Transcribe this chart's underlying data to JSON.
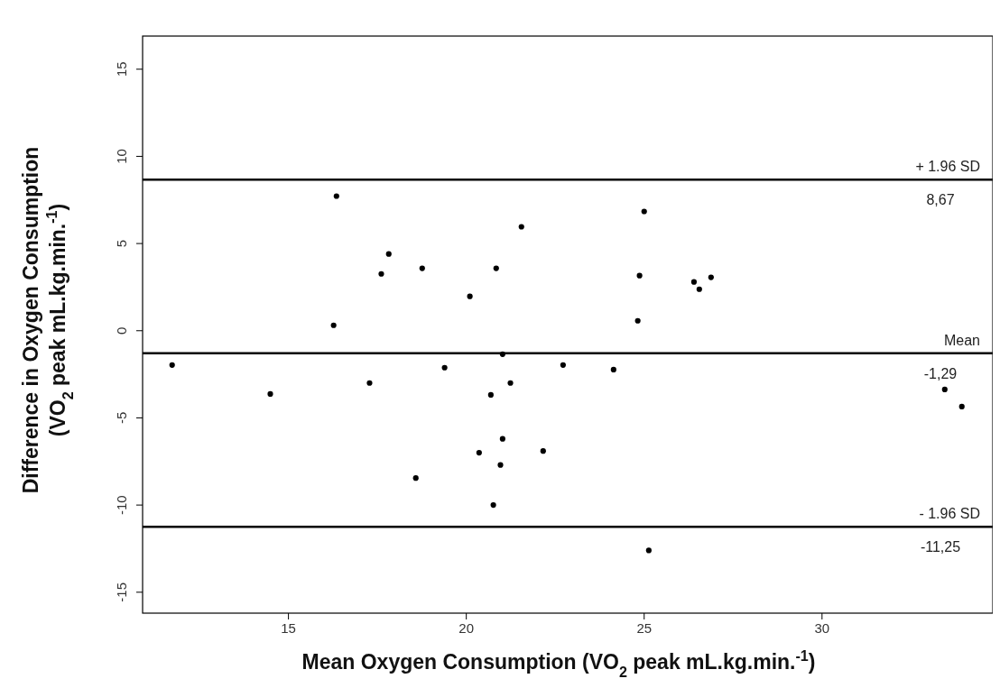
{
  "chart_data": {
    "type": "scatter",
    "xlabel": "Mean Oxygen Consumption (VO$_{2}$ peak mL.kg.min.$^{-1}$)",
    "ylabel": "Difference in Oxygen Consumption\n(VO$_{2}$ peak mL.kg.min.$^{-1}$)",
    "xlim": [
      10.9,
      34.8
    ],
    "ylim": [
      -16.2,
      16.9
    ],
    "xticks": [
      15,
      20,
      25,
      30
    ],
    "yticks": [
      -15,
      -10,
      -5,
      0,
      5,
      10,
      15
    ],
    "grid": false,
    "marker": "circle",
    "series": [
      {
        "color": "#000000",
        "x": [
          11.73,
          14.49,
          16.35,
          16.27,
          17.28,
          17.61,
          17.82,
          18.76,
          18.58,
          19.39,
          20.1,
          20.84,
          21.55,
          20.69,
          21.24,
          21.02,
          20.36,
          21.02,
          20.96,
          20.76,
          22.16,
          22.72,
          24.14,
          24.82,
          24.87,
          25.0,
          25.13,
          26.4,
          26.55,
          26.88,
          33.45,
          33.93
        ],
        "values": [
          -1.97,
          -3.63,
          7.72,
          0.31,
          -3.0,
          3.26,
          4.4,
          3.58,
          -8.45,
          -2.12,
          1.97,
          3.58,
          5.96,
          -3.68,
          -3.0,
          -1.35,
          -7.0,
          -6.2,
          -7.7,
          -10.0,
          -6.9,
          -1.97,
          -2.23,
          0.57,
          3.16,
          6.84,
          -12.6,
          2.8,
          2.38,
          3.06,
          -3.37,
          -4.35
        ]
      }
    ],
    "ref_lines": [
      {
        "axis": "y",
        "value": 8.67,
        "label": "+ 1.96 SD",
        "color": "#000000"
      },
      {
        "axis": "y",
        "value": -1.29,
        "label": "Mean",
        "color": "#000000"
      },
      {
        "axis": "y",
        "value": -11.25,
        "label": "- 1.96 SD",
        "color": "#000000"
      }
    ],
    "annotations": [
      {
        "text": "8,67",
        "y": 8.67
      },
      {
        "text": "-1,29",
        "y": -1.29
      },
      {
        "text": "-11,25",
        "y": -11.25
      }
    ]
  }
}
